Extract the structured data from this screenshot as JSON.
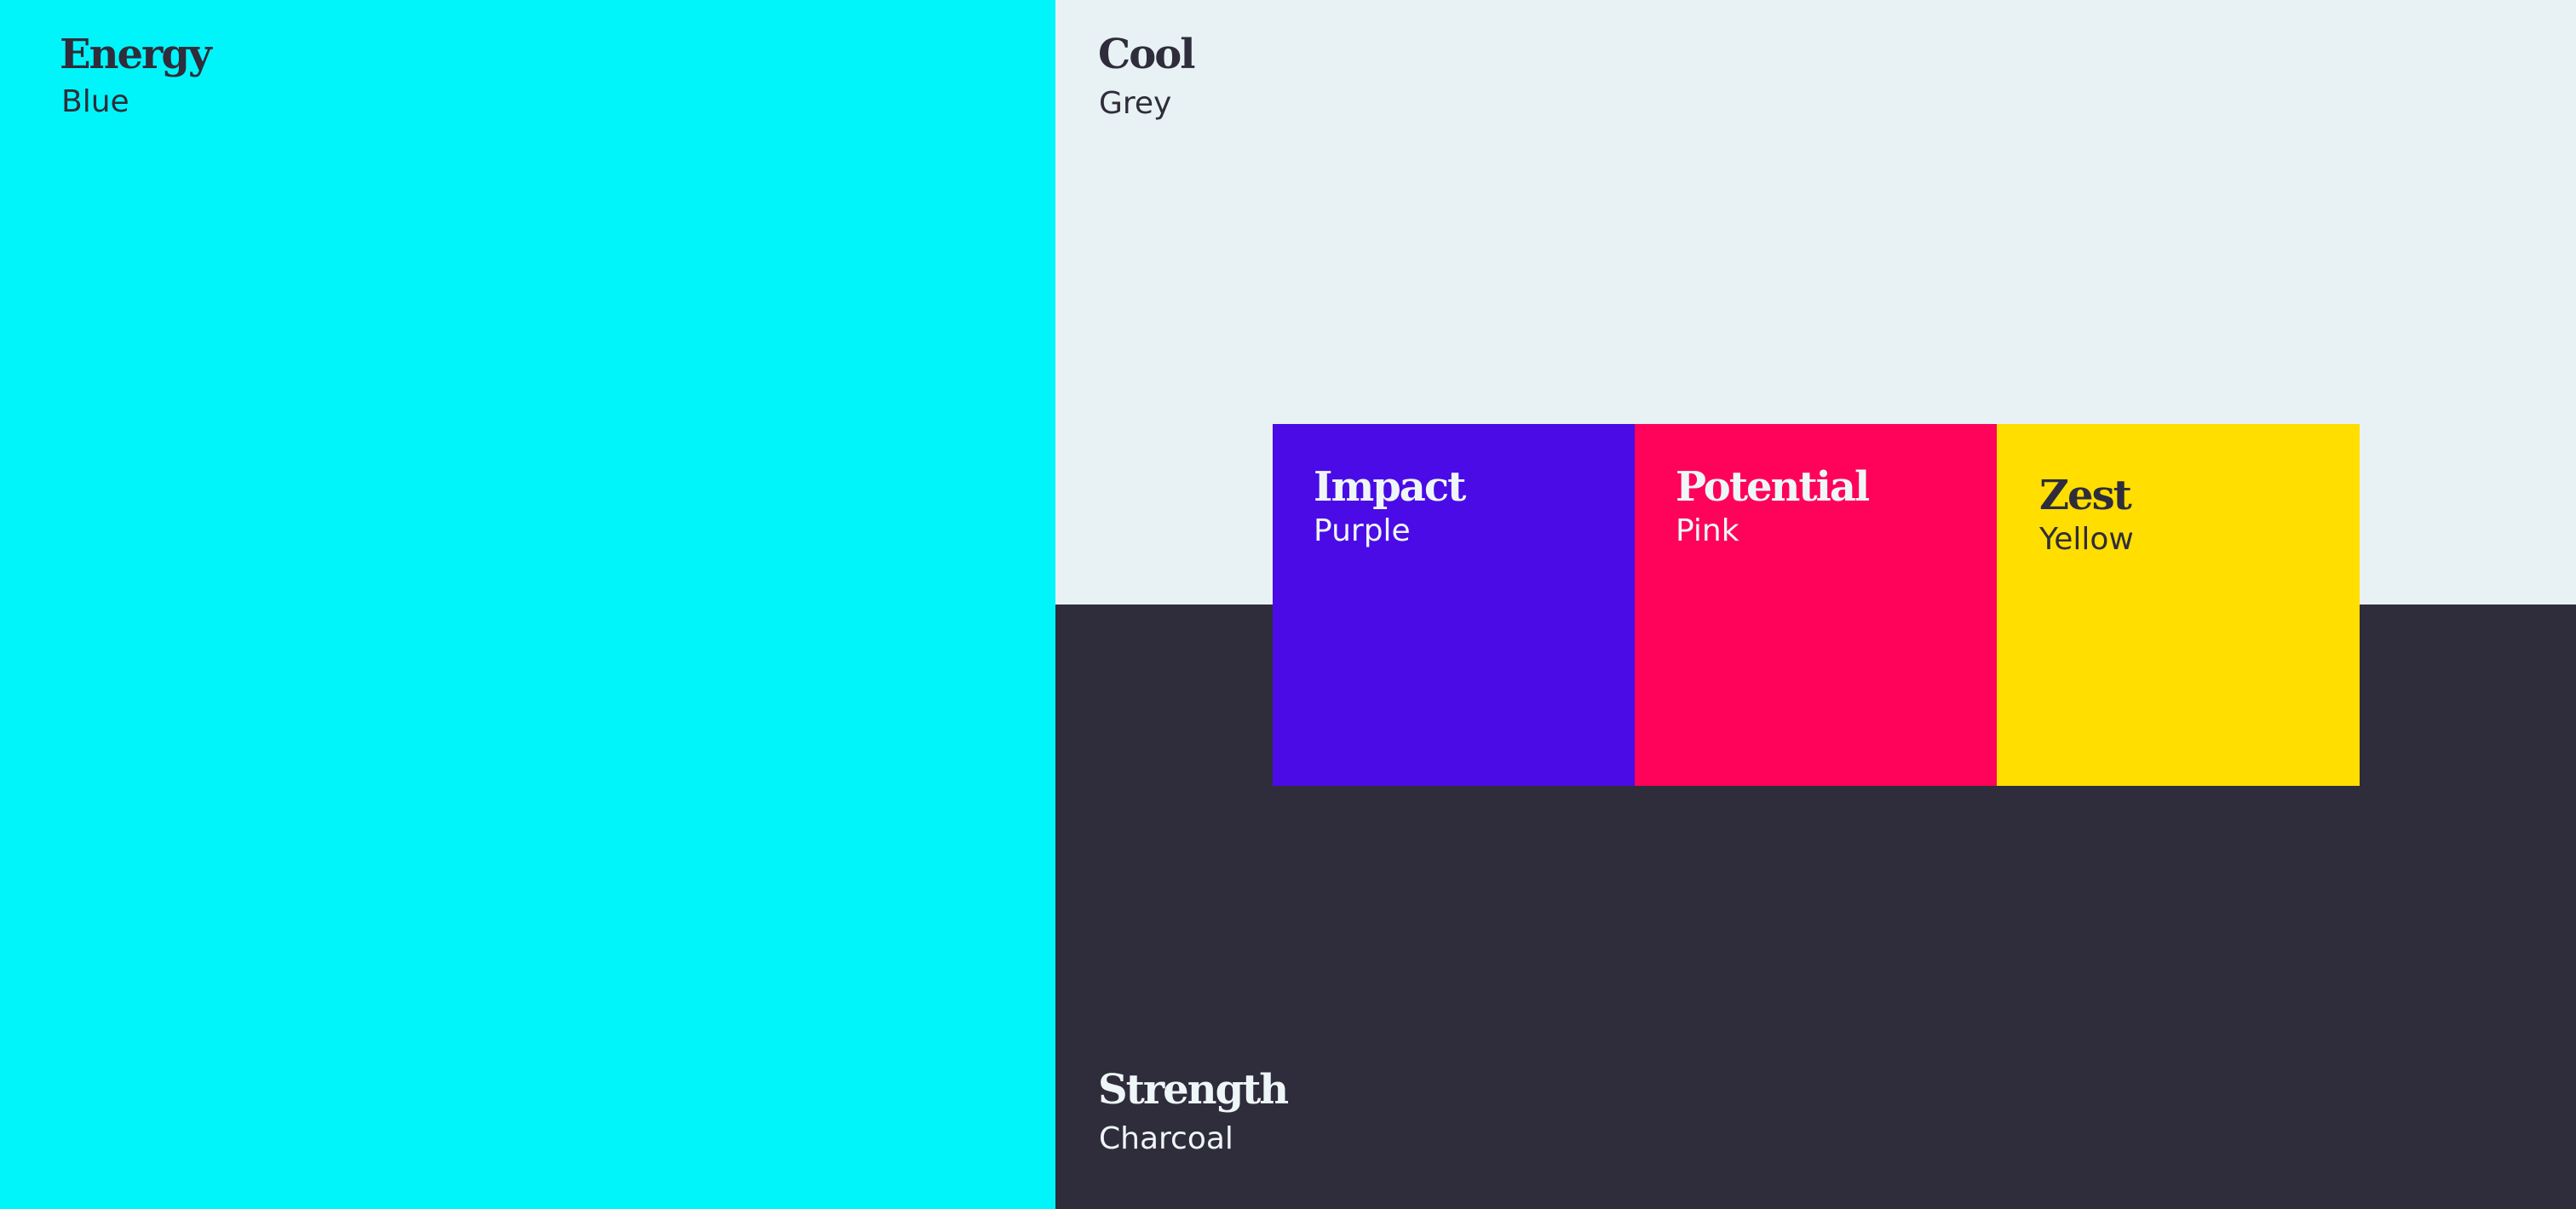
{
  "swatches": {
    "energy": {
      "title": "Energy",
      "name": "Blue",
      "color": "#00F5FA"
    },
    "cool": {
      "title": "Cool",
      "name": "Grey",
      "color": "#E8F2F4"
    },
    "strength": {
      "title": "Strength",
      "name": "Charcoal",
      "color": "#2F2D3B"
    },
    "impact": {
      "title": "Impact",
      "name": "Purple",
      "color": "#4B0BE6"
    },
    "potential": {
      "title": "Potential",
      "name": "Pink",
      "color": "#FF0259"
    },
    "zest": {
      "title": "Zest",
      "name": "Yellow",
      "color": "#FFDE00"
    }
  }
}
